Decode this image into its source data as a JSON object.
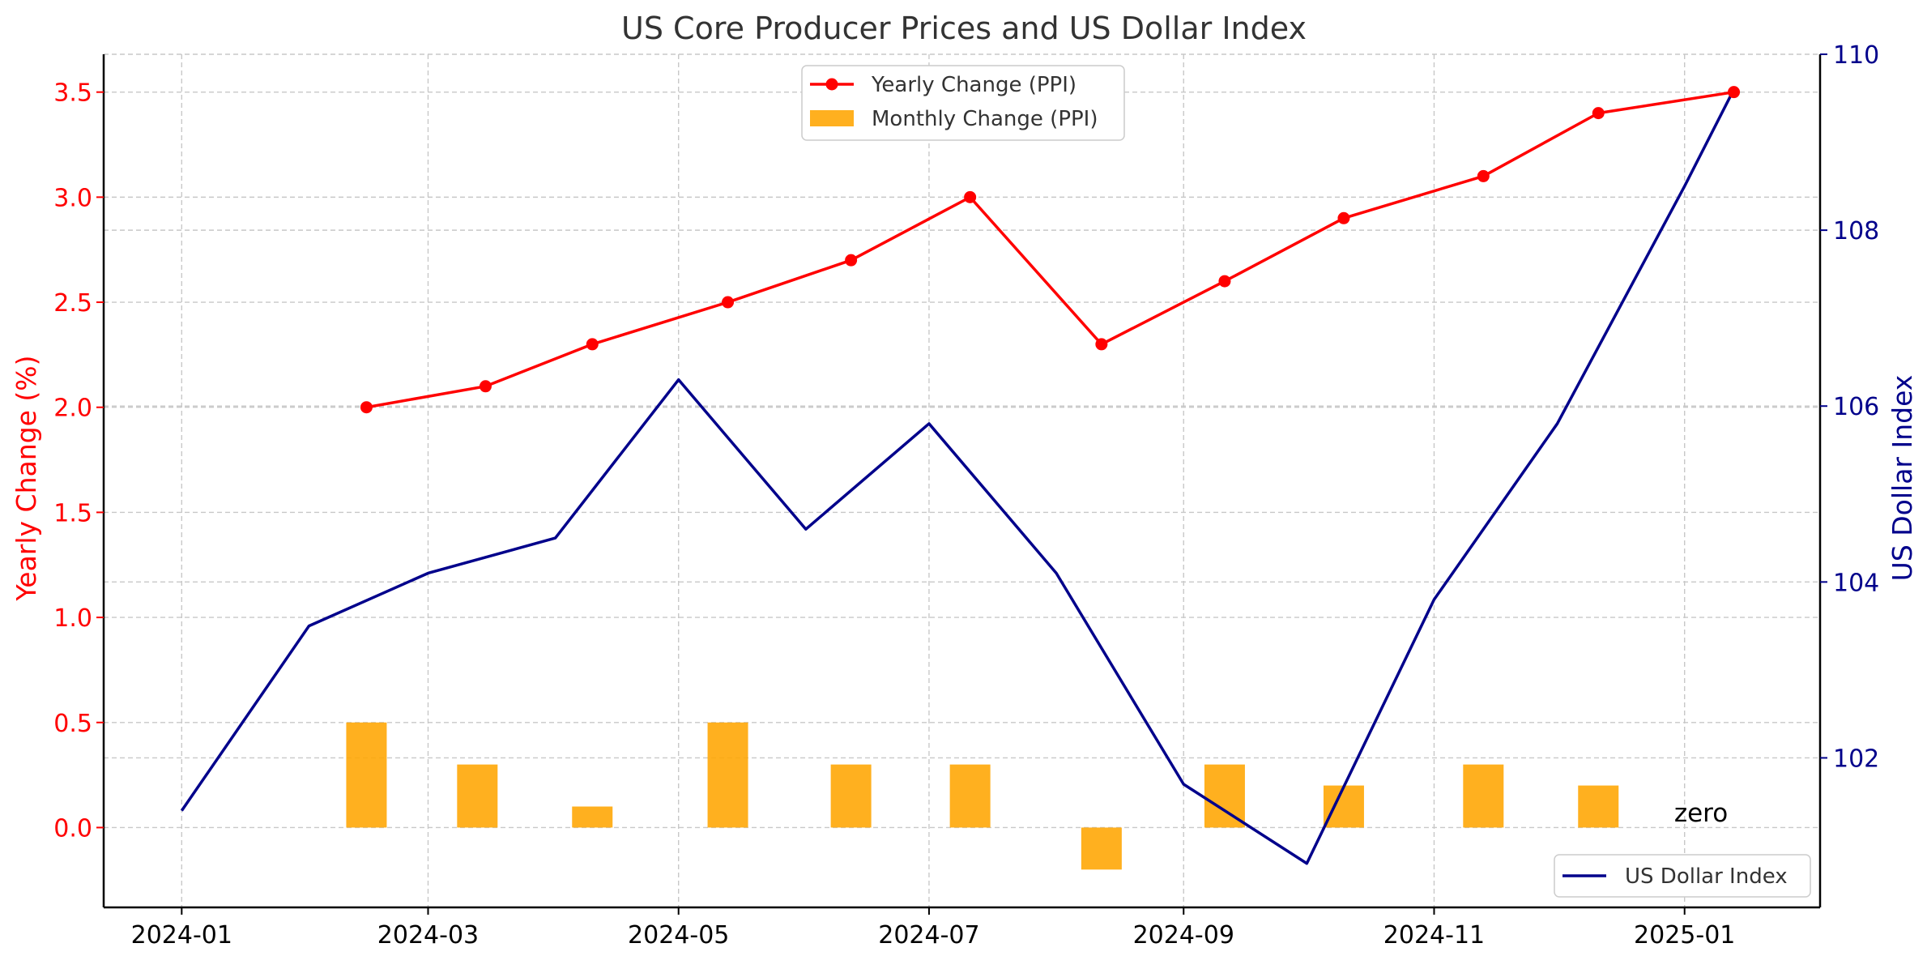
{
  "chart_data": {
    "type": "bar+line",
    "title": "US Core Producer Prices and US Dollar Index",
    "x_ticks": [
      "2024-01",
      "2024-03",
      "2024-05",
      "2024-07",
      "2024-09",
      "2024-11",
      "2025-01"
    ],
    "x_tick_dates": [
      0,
      60,
      121,
      182,
      244,
      305,
      366
    ],
    "x_range_days": [
      -19,
      399
    ],
    "left_axis": {
      "label": "Yearly Change (%)",
      "color": "#ff0000",
      "range": [
        -0.38,
        3.68
      ],
      "ticks": [
        "0.0",
        "0.5",
        "1.0",
        "1.5",
        "2.0",
        "2.5",
        "3.0",
        "3.5"
      ],
      "tick_values": [
        0,
        0.5,
        1.0,
        1.5,
        2.0,
        2.5,
        3.0,
        3.5
      ]
    },
    "right_axis": {
      "label": "US Dollar Index",
      "color": "#00008b",
      "range": [
        100.3,
        110.0
      ],
      "ticks": [
        "102",
        "104",
        "106",
        "108",
        "110"
      ],
      "tick_values": [
        102,
        104,
        106,
        108,
        110
      ]
    },
    "monthly_series": {
      "name": "Monthly Change (PPI)",
      "color": "#ffa500",
      "x_days": [
        45,
        72,
        100,
        133,
        163,
        192,
        224,
        254,
        283,
        317,
        345
      ],
      "values": [
        0.5,
        0.3,
        0.1,
        0.5,
        0.3,
        0.3,
        -0.2,
        0.3,
        0.2,
        0.3,
        0.2
      ]
    },
    "yearly_series": {
      "name": "Yearly Change (PPI)",
      "color": "#ff0000",
      "x_days": [
        45,
        74,
        100,
        133,
        163,
        192,
        224,
        254,
        283,
        317,
        345,
        378
      ],
      "values": [
        2.0,
        2.1,
        2.3,
        2.5,
        2.7,
        3.0,
        2.3,
        2.6,
        2.9,
        3.1,
        3.4,
        3.5
      ]
    },
    "dollar_series": {
      "name": "US Dollar Index",
      "color": "#00008b",
      "x_days": [
        0,
        31,
        60,
        91,
        121,
        152,
        182,
        213,
        244,
        274,
        305,
        335,
        366,
        378
      ],
      "values": [
        101.4,
        103.5,
        104.1,
        104.5,
        106.3,
        104.6,
        105.8,
        104.1,
        101.7,
        100.8,
        103.8,
        105.8,
        108.5,
        109.6
      ]
    },
    "annotation": "zero",
    "legend_top": [
      "Yearly Change (PPI)",
      "Monthly Change (PPI)"
    ],
    "legend_bottom": [
      "US Dollar Index"
    ],
    "grid": true
  }
}
